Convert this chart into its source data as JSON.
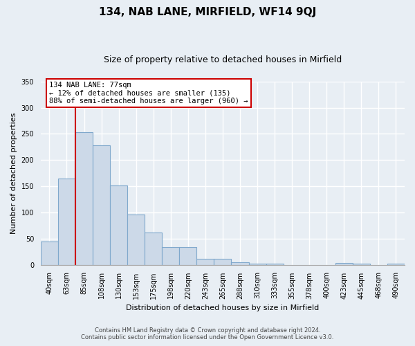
{
  "title": "134, NAB LANE, MIRFIELD, WF14 9QJ",
  "subtitle": "Size of property relative to detached houses in Mirfield",
  "xlabel": "Distribution of detached houses by size in Mirfield",
  "ylabel": "Number of detached properties",
  "bar_labels": [
    "40sqm",
    "63sqm",
    "85sqm",
    "108sqm",
    "130sqm",
    "153sqm",
    "175sqm",
    "198sqm",
    "220sqm",
    "243sqm",
    "265sqm",
    "288sqm",
    "310sqm",
    "333sqm",
    "355sqm",
    "378sqm",
    "400sqm",
    "423sqm",
    "445sqm",
    "468sqm",
    "490sqm"
  ],
  "bar_values": [
    44,
    165,
    253,
    228,
    152,
    96,
    61,
    34,
    34,
    11,
    11,
    5,
    2,
    2,
    0,
    0,
    0,
    4,
    2,
    0,
    2
  ],
  "bar_color": "#ccd9e8",
  "bar_edge_color": "#7fa8cc",
  "vline_x_index": 1.5,
  "vline_color": "#cc0000",
  "annotation_title": "134 NAB LANE: 77sqm",
  "annotation_line1": "← 12% of detached houses are smaller (135)",
  "annotation_line2": "88% of semi-detached houses are larger (960) →",
  "annotation_box_color": "white",
  "annotation_box_edge": "#cc0000",
  "ylim": [
    0,
    350
  ],
  "yticks": [
    0,
    50,
    100,
    150,
    200,
    250,
    300,
    350
  ],
  "footnote1": "Contains HM Land Registry data © Crown copyright and database right 2024.",
  "footnote2": "Contains public sector information licensed under the Open Government Licence v3.0.",
  "bg_color": "#e8eef4",
  "plot_bg_color": "#e8eef4",
  "grid_color": "white",
  "title_fontsize": 11,
  "subtitle_fontsize": 9,
  "tick_fontsize": 7,
  "ylabel_fontsize": 8,
  "xlabel_fontsize": 8
}
